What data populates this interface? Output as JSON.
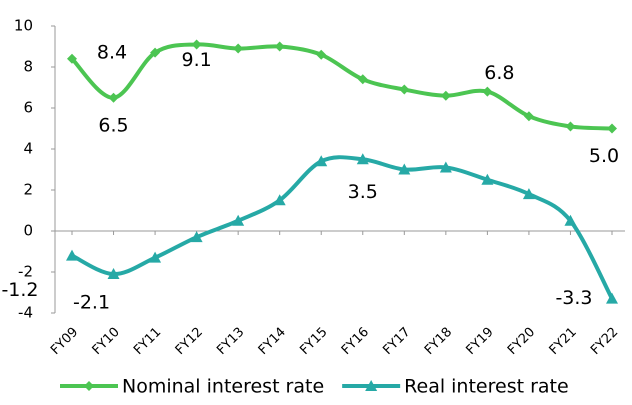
{
  "chart_data": {
    "type": "line",
    "categories": [
      "FY09",
      "FY10",
      "FY11",
      "FY12",
      "FY13",
      "FY14",
      "FY15",
      "FY16",
      "FY17",
      "FY18",
      "FY19",
      "FY20",
      "FY21",
      "FY22"
    ],
    "series": [
      {
        "name": "Nominal interest rate",
        "color": "#4cc552",
        "marker": "diamond",
        "values": [
          8.4,
          6.5,
          8.7,
          9.1,
          8.9,
          9.0,
          8.6,
          7.4,
          6.9,
          6.6,
          6.8,
          5.6,
          5.1,
          5.0
        ],
        "value_labels": [
          "8.4",
          "6.5",
          null,
          "9.1",
          null,
          null,
          null,
          null,
          null,
          null,
          "6.8",
          null,
          null,
          "5.0"
        ]
      },
      {
        "name": "Real interest rate",
        "color": "#26a9a6",
        "marker": "triangle",
        "values": [
          -1.2,
          -2.1,
          -1.3,
          -0.3,
          0.5,
          1.5,
          3.4,
          3.5,
          3.0,
          3.1,
          2.5,
          1.8,
          0.5,
          -3.3
        ],
        "value_labels": [
          "-1.2",
          "-2.1",
          null,
          null,
          null,
          null,
          null,
          "3.5",
          null,
          null,
          null,
          null,
          null,
          "-3.3"
        ]
      }
    ],
    "ylim": [
      -4,
      10
    ],
    "yticks": [
      -4,
      -2,
      0,
      2,
      4,
      6,
      8,
      10
    ],
    "legend": "bottom"
  }
}
